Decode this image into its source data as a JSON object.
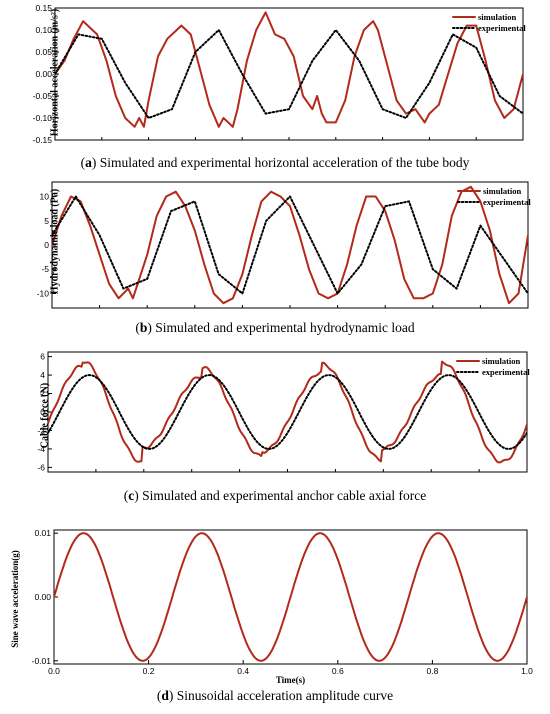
{
  "colors": {
    "simulation": "#b22a1a",
    "experimental": "#000000",
    "sine": "#b22a1a"
  },
  "chart_data": [
    {
      "id": "a",
      "type": "line",
      "caption_letter": "a",
      "caption_text": "Simulated and experimental horizontal acceleration of the tube body",
      "ylabel": "Horizontal acceleration (m/s²)",
      "ylim": [
        -0.15,
        0.15
      ],
      "yticks": [
        -0.15,
        -0.1,
        -0.05,
        0.0,
        0.05,
        0.1,
        0.15
      ],
      "ytick_labels": [
        "-0.15",
        "-0.10",
        "-0.05",
        "0.00",
        "0.05",
        "0.10",
        "0.15"
      ],
      "legend": {
        "position": "top-right",
        "entries": [
          "simulation",
          "experimental"
        ]
      },
      "grid": false,
      "series": [
        {
          "name": "simulation",
          "style": "solid",
          "x": [
            0,
            0.02,
            0.04,
            0.06,
            0.08,
            0.09,
            0.1,
            0.11,
            0.13,
            0.15,
            0.17,
            0.18,
            0.19,
            0.2,
            0.22,
            0.24,
            0.26,
            0.27,
            0.29,
            0.31,
            0.33,
            0.35,
            0.36,
            0.38,
            0.39,
            0.41,
            0.43,
            0.45,
            0.47,
            0.49,
            0.51,
            0.53,
            0.55,
            0.56,
            0.57,
            0.58,
            0.6,
            0.62,
            0.64,
            0.66,
            0.68,
            0.69,
            0.71,
            0.73,
            0.75,
            0.77,
            0.79,
            0.8,
            0.82,
            0.84,
            0.86,
            0.88,
            0.9,
            0.92,
            0.94,
            0.96,
            0.98,
            1.0
          ],
          "y": [
            0.0,
            0.03,
            0.08,
            0.12,
            0.1,
            0.09,
            0.06,
            0.03,
            -0.05,
            -0.1,
            -0.12,
            -0.1,
            -0.12,
            -0.06,
            0.04,
            0.08,
            0.1,
            0.11,
            0.09,
            0.01,
            -0.07,
            -0.12,
            -0.1,
            -0.12,
            -0.08,
            0.03,
            0.1,
            0.14,
            0.09,
            0.08,
            0.04,
            -0.05,
            -0.08,
            -0.05,
            -0.09,
            -0.11,
            -0.11,
            -0.06,
            0.04,
            0.1,
            0.12,
            0.1,
            0.02,
            -0.06,
            -0.09,
            -0.08,
            -0.11,
            -0.09,
            -0.07,
            0.0,
            0.07,
            0.11,
            0.11,
            0.03,
            -0.06,
            -0.1,
            -0.08,
            0.0
          ]
        },
        {
          "name": "experimental",
          "style": "dotted",
          "x": [
            0,
            0.05,
            0.1,
            0.15,
            0.2,
            0.25,
            0.3,
            0.35,
            0.4,
            0.45,
            0.5,
            0.55,
            0.6,
            0.65,
            0.7,
            0.75,
            0.8,
            0.85,
            0.9,
            0.95,
            1.0
          ],
          "y": [
            0.0,
            0.09,
            0.08,
            -0.02,
            -0.1,
            -0.08,
            0.05,
            0.1,
            0.0,
            -0.09,
            -0.08,
            0.03,
            0.1,
            0.03,
            -0.08,
            -0.1,
            -0.02,
            0.09,
            0.06,
            -0.05,
            -0.09
          ]
        }
      ]
    },
    {
      "id": "b",
      "type": "line",
      "caption_letter": "b",
      "caption_text": "Simulated and experimental hydrodynamic load",
      "ylabel": "Hydrodynamic load (Pa)",
      "ylim": [
        -13,
        13
      ],
      "yticks": [
        -10,
        -5,
        0,
        5,
        10
      ],
      "ytick_labels": [
        "-10",
        "-5",
        "0",
        "5",
        "10"
      ],
      "legend": {
        "position": "top-right",
        "entries": [
          "simulation",
          "experimental"
        ]
      },
      "grid": false,
      "series": [
        {
          "name": "simulation",
          "style": "solid",
          "x": [
            0,
            0.02,
            0.04,
            0.06,
            0.08,
            0.1,
            0.12,
            0.14,
            0.16,
            0.17,
            0.18,
            0.2,
            0.22,
            0.24,
            0.26,
            0.28,
            0.3,
            0.32,
            0.34,
            0.36,
            0.38,
            0.4,
            0.42,
            0.44,
            0.46,
            0.48,
            0.5,
            0.52,
            0.54,
            0.56,
            0.58,
            0.6,
            0.62,
            0.64,
            0.66,
            0.68,
            0.7,
            0.72,
            0.74,
            0.76,
            0.78,
            0.8,
            0.82,
            0.84,
            0.86,
            0.88,
            0.9,
            0.92,
            0.94,
            0.96,
            0.98,
            1.0
          ],
          "y": [
            0,
            6,
            10,
            9,
            4,
            -2,
            -8,
            -11,
            -9,
            -11,
            -8,
            -2,
            6,
            10,
            11,
            8,
            3,
            -4,
            -10,
            -12,
            -11,
            -6,
            2,
            9,
            11,
            10,
            8,
            2,
            -5,
            -10,
            -11,
            -10,
            -4,
            4,
            10,
            10,
            7,
            1,
            -7,
            -11,
            -11,
            -10,
            -4,
            6,
            11,
            12,
            9,
            3,
            -6,
            -12,
            -10,
            2
          ]
        },
        {
          "name": "experimental",
          "style": "dotted",
          "x": [
            0,
            0.05,
            0.1,
            0.15,
            0.2,
            0.25,
            0.3,
            0.35,
            0.4,
            0.45,
            0.5,
            0.55,
            0.6,
            0.65,
            0.7,
            0.75,
            0.8,
            0.85,
            0.9,
            0.95,
            1.0
          ],
          "y": [
            2,
            10,
            2,
            -9,
            -7,
            7,
            9,
            -6,
            -10,
            5,
            10,
            0,
            -10,
            -4,
            8,
            9,
            -5,
            -9,
            4,
            -3,
            -10
          ]
        }
      ]
    },
    {
      "id": "c",
      "type": "line",
      "caption_letter": "c",
      "caption_text": "Simulated and experimental anchor cable axial force",
      "ylabel": "Cable force (N)",
      "ylim": [
        -6.5,
        6.5
      ],
      "yticks": [
        -6,
        -4,
        -2,
        0,
        2,
        4,
        6
      ],
      "ytick_labels": [
        "-6",
        "-4",
        "-2",
        "0",
        "2",
        "4",
        "6"
      ],
      "legend": {
        "position": "top-right",
        "entries": [
          "simulation",
          "experimental"
        ]
      },
      "grid": false,
      "series": [
        {
          "name": "simulation",
          "style": "solid",
          "amplitude": [
            5.0,
            5.5,
            3.9,
            4.8,
            4.3,
            5.2,
            4.0,
            5.4
          ]
        },
        {
          "name": "experimental",
          "style": "dotted",
          "amplitude": 4.0
        }
      ]
    },
    {
      "id": "d",
      "type": "line",
      "caption_letter": "d",
      "caption_text": "Sinusoidal acceleration amplitude curve",
      "ylabel": "Sine wave acceleration(g)",
      "xlabel": "Time(s)",
      "xlim": [
        0,
        1.0
      ],
      "ylim": [
        -0.0105,
        0.0105
      ],
      "xticks": [
        0.0,
        0.2,
        0.4,
        0.6,
        0.8,
        1.0
      ],
      "xtick_labels": [
        "0.0",
        "0.2",
        "0.4",
        "0.6",
        "0.8",
        "1.0"
      ],
      "yticks": [
        -0.01,
        0.0,
        0.01
      ],
      "ytick_labels": [
        "-0.01",
        "0.00",
        "0.01"
      ],
      "grid": false,
      "series": [
        {
          "name": "",
          "style": "solid",
          "amplitude": 0.01,
          "frequency": 4
        }
      ]
    }
  ]
}
